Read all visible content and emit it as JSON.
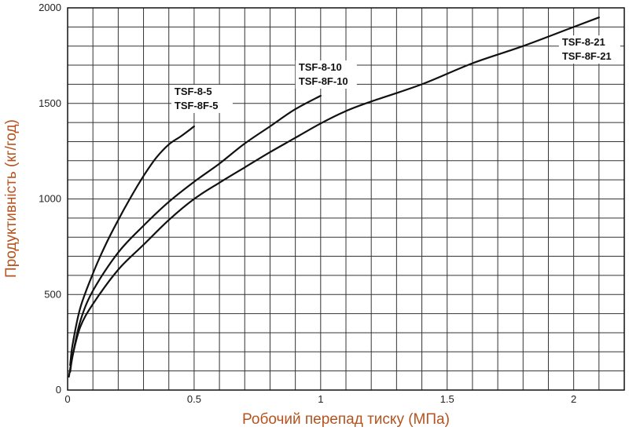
{
  "chart_data": {
    "type": "line",
    "xlabel": "Робочий перепад тиску (МПа)",
    "ylabel": "Продуктивність (кг/год)",
    "xlim": [
      0,
      2.2
    ],
    "ylim": [
      0,
      2000
    ],
    "x_ticks": [
      "0",
      "0.5",
      "1",
      "1.5",
      "2"
    ],
    "x_tick_values": [
      0,
      0.5,
      1,
      1.5,
      2
    ],
    "y_ticks": [
      "0",
      "500",
      "1000",
      "1500",
      "2000"
    ],
    "y_tick_values": [
      0,
      500,
      1000,
      1500,
      2000
    ],
    "grid": true,
    "x_grid_step": 0.1,
    "y_grid_step": 100,
    "colors": {
      "line": "#111111",
      "grid": "#333333",
      "axis_title": "#b5531f"
    },
    "series": [
      {
        "name": "TSF-8-5\nTSF-8F-5",
        "label_lines": [
          "TSF-8-5",
          "TSF-8F-5"
        ],
        "x": [
          0.01,
          0.02,
          0.05,
          0.1,
          0.15,
          0.2,
          0.25,
          0.3,
          0.35,
          0.4,
          0.45,
          0.5
        ],
        "y": [
          130,
          240,
          430,
          610,
          760,
          890,
          1010,
          1120,
          1215,
          1285,
          1330,
          1380
        ]
      },
      {
        "name": "TSF-8-10\nTSF-8F-10",
        "label_lines": [
          "TSF-8-10",
          "TSF-8F-10"
        ],
        "x": [
          0.01,
          0.02,
          0.05,
          0.1,
          0.2,
          0.3,
          0.4,
          0.5,
          0.6,
          0.7,
          0.8,
          0.9,
          1.0
        ],
        "y": [
          95,
          180,
          360,
          520,
          720,
          860,
          985,
          1090,
          1185,
          1290,
          1380,
          1470,
          1540
        ]
      },
      {
        "name": "TSF-8-21\nTSF-8F-21",
        "label_lines": [
          "TSF-8-21",
          "TSF-8F-21"
        ],
        "x": [
          0.005,
          0.02,
          0.05,
          0.1,
          0.2,
          0.3,
          0.4,
          0.5,
          0.6,
          0.7,
          0.8,
          0.9,
          1.0,
          1.1,
          1.2,
          1.4,
          1.6,
          1.8,
          2.0,
          2.1
        ],
        "y": [
          70,
          180,
          330,
          450,
          630,
          760,
          890,
          1000,
          1085,
          1165,
          1245,
          1320,
          1395,
          1460,
          1510,
          1600,
          1710,
          1800,
          1900,
          1950
        ]
      }
    ]
  }
}
